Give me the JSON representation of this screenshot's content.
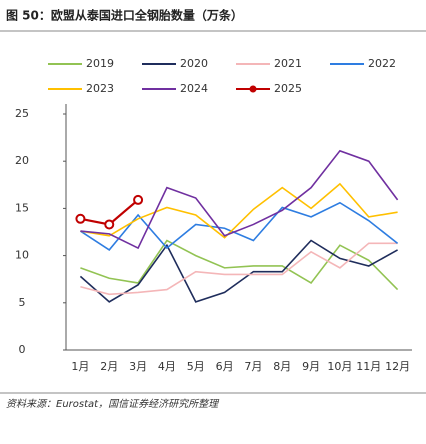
{
  "chart_data": {
    "type": "line",
    "title": "图 50：欧盟从泰国进口全钢胎数量（万条）",
    "source": "资料来源：Eurostat，国信证券经济研究所整理",
    "categories": [
      "1月",
      "2月",
      "3月",
      "4月",
      "5月",
      "6月",
      "7月",
      "8月",
      "9月",
      "10月",
      "11月",
      "12月"
    ],
    "ylim": [
      0,
      25
    ],
    "yticks": [
      0,
      5,
      10,
      15,
      20,
      25
    ],
    "grid": false,
    "legend": "top",
    "series": [
      {
        "name": "2019",
        "color": "#92c353",
        "values": [
          8.7,
          7.6,
          7.1,
          11.6,
          10,
          8.7,
          8.9,
          8.9,
          7.1,
          11.1,
          9.5,
          6.4
        ]
      },
      {
        "name": "2020",
        "color": "#1f2d5c",
        "values": [
          7.8,
          5.1,
          6.9,
          11.1,
          5.1,
          6.1,
          8.3,
          8.3,
          11.6,
          9.7,
          8.9,
          10.6
        ]
      },
      {
        "name": "2021",
        "color": "#f4b6b8",
        "values": [
          6.7,
          5.9,
          6.1,
          6.4,
          8.3,
          8,
          8,
          8,
          10.4,
          8.7,
          11.3,
          11.3
        ]
      },
      {
        "name": "2022",
        "color": "#2e7de1",
        "values": [
          12.6,
          10.6,
          14.3,
          10.8,
          13.3,
          12.9,
          11.6,
          15.1,
          14.1,
          15.6,
          13.7,
          11.3
        ]
      },
      {
        "name": "2023",
        "color": "#ffc000",
        "values": [
          12.6,
          12.1,
          13.9,
          15.1,
          14.3,
          11.9,
          14.9,
          17.2,
          15,
          17.6,
          14.1,
          14.6
        ]
      },
      {
        "name": "2024",
        "color": "#7030a0",
        "values": [
          12.6,
          12.3,
          10.8,
          17.2,
          16.1,
          12.1,
          13.3,
          14.8,
          17.2,
          21.1,
          20,
          15.9
        ]
      },
      {
        "name": "2025",
        "color": "#c00000",
        "marker": "circle",
        "values": [
          13.9,
          13.3,
          15.9,
          null,
          null,
          null,
          null,
          null,
          null,
          null,
          null,
          null
        ]
      }
    ]
  }
}
